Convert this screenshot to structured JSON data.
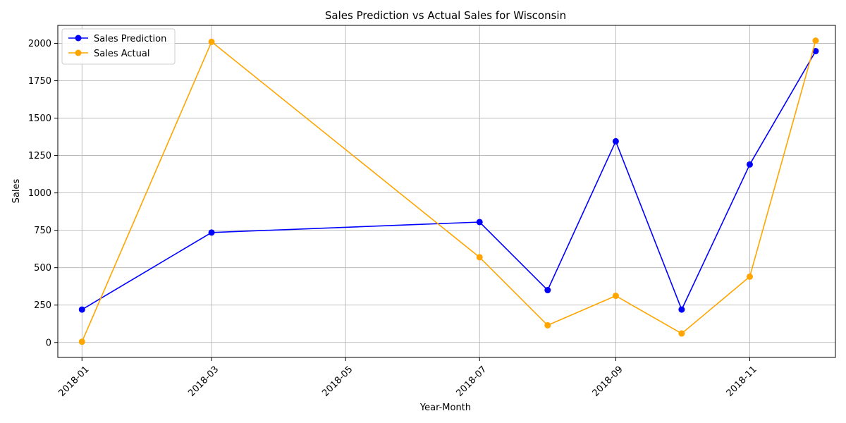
{
  "chart_data": {
    "type": "line",
    "title": "Sales Prediction vs Actual Sales for Wisconsin",
    "xlabel": "Year-Month",
    "ylabel": "Sales",
    "x": [
      "2018-01",
      "2018-03",
      "2018-07",
      "2018-08",
      "2018-09",
      "2018-10",
      "2018-11",
      "2018-12"
    ],
    "x_ticks": [
      "2018-01",
      "2018-03",
      "2018-05",
      "2018-07",
      "2018-09",
      "2018-11"
    ],
    "y_ticks": [
      0,
      250,
      500,
      750,
      1000,
      1250,
      1500,
      1750,
      2000
    ],
    "ylim": [
      -100,
      2120
    ],
    "xlim": [
      "2017-12-21",
      "2018-12-10"
    ],
    "grid": true,
    "legend_position": "top-left",
    "series": [
      {
        "name": "Sales Prediction",
        "color": "#0000ff",
        "marker": "circle",
        "values": [
          220,
          735,
          805,
          350,
          1345,
          220,
          1190,
          1948
        ]
      },
      {
        "name": "Sales Actual",
        "color": "#ffa500",
        "marker": "circle",
        "values": [
          5,
          2010,
          570,
          115,
          312,
          60,
          440,
          2018
        ]
      }
    ]
  }
}
